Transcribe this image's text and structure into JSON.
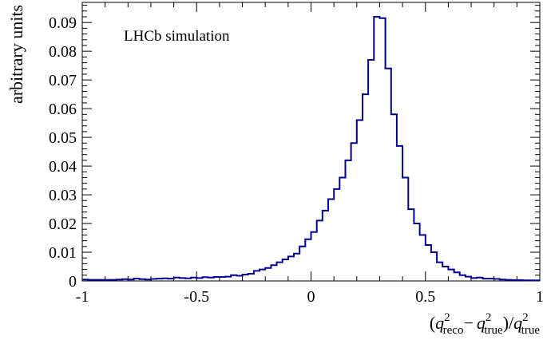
{
  "chart_data": {
    "type": "histogram",
    "annotation": "LHCb simulation",
    "ylabel": "arbitrary units",
    "xlabel": {
      "open": "(",
      "q": "q",
      "sup": "2",
      "sub_reco": "reco",
      "minus": "−",
      "sub_true": "true",
      "close_div": ")/"
    },
    "xlim": [
      -1,
      1
    ],
    "ylim": [
      0,
      0.097
    ],
    "x_ticks": [
      {
        "value": -1,
        "label": "-1"
      },
      {
        "value": -0.5,
        "label": "-0.5"
      },
      {
        "value": 0,
        "label": "0"
      },
      {
        "value": 0.5,
        "label": "0.5"
      },
      {
        "value": 1,
        "label": "1"
      }
    ],
    "y_ticks": [
      {
        "value": 0,
        "label": "0"
      },
      {
        "value": 0.01,
        "label": "0.01"
      },
      {
        "value": 0.02,
        "label": "0.02"
      },
      {
        "value": 0.03,
        "label": "0.03"
      },
      {
        "value": 0.04,
        "label": "0.04"
      },
      {
        "value": 0.05,
        "label": "0.05"
      },
      {
        "value": 0.06,
        "label": "0.06"
      },
      {
        "value": 0.07,
        "label": "0.07"
      },
      {
        "value": 0.08,
        "label": "0.08"
      },
      {
        "value": 0.09,
        "label": "0.09"
      }
    ],
    "bin_edges_start": -1,
    "bin_width": 0.025,
    "values": [
      0.0005,
      0.0004,
      0.0004,
      0.0004,
      0.0004,
      0.0004,
      0.0005,
      0.0006,
      0.0005,
      0.0008,
      0.0006,
      0.0005,
      0.0007,
      0.0008,
      0.0009,
      0.0008,
      0.0012,
      0.001,
      0.0009,
      0.0012,
      0.001,
      0.0013,
      0.0012,
      0.0014,
      0.0014,
      0.0015,
      0.002,
      0.0018,
      0.0022,
      0.0025,
      0.0035,
      0.004,
      0.0045,
      0.0055,
      0.0065,
      0.0075,
      0.0085,
      0.0095,
      0.012,
      0.0145,
      0.017,
      0.021,
      0.0245,
      0.0285,
      0.032,
      0.036,
      0.042,
      0.048,
      0.056,
      0.065,
      0.077,
      0.092,
      0.0915,
      0.074,
      0.058,
      0.047,
      0.036,
      0.025,
      0.02,
      0.016,
      0.0125,
      0.01,
      0.0065,
      0.005,
      0.004,
      0.003,
      0.002,
      0.0015,
      0.001,
      0.0012,
      0.0008,
      0.0008,
      0.0007,
      0.0005,
      0.0004,
      0.0003,
      0.0003,
      0.0002,
      0.0002,
      0.0002
    ],
    "line_color": "#00008b"
  }
}
